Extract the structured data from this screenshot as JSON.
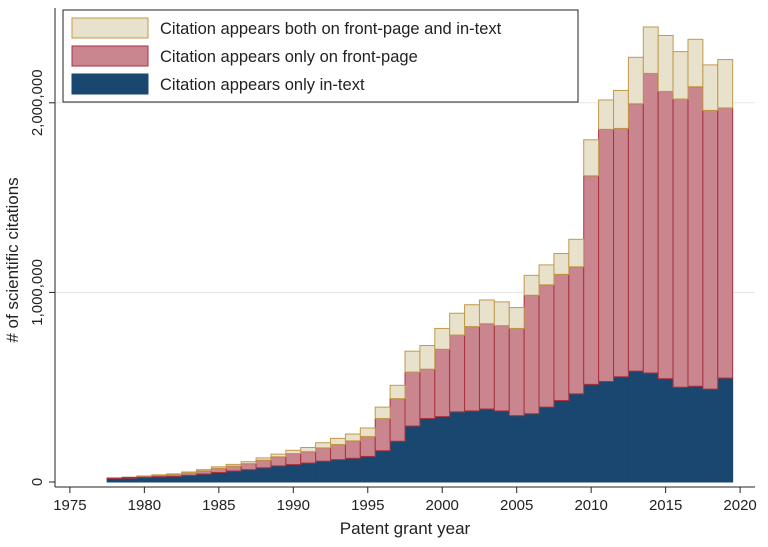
{
  "chart_data": {
    "type": "bar",
    "stacked": true,
    "xlabel": "Patent grant year",
    "ylabel": "# of scientific citations",
    "xlim": [
      1974,
      2021
    ],
    "ylim": [
      0,
      2500000
    ],
    "x_ticks": [
      1975,
      1980,
      1985,
      1990,
      1995,
      2000,
      2005,
      2010,
      2015,
      2020
    ],
    "y_ticks": [
      0,
      1000000,
      2000000
    ],
    "y_tick_labels": [
      "0",
      "1,000,000",
      "2,000,000"
    ],
    "grid": "horizontal",
    "legend_placement": "top-left",
    "x": [
      1978,
      1979,
      1980,
      1981,
      1982,
      1983,
      1984,
      1985,
      1986,
      1987,
      1988,
      1989,
      1990,
      1991,
      1992,
      1993,
      1994,
      1995,
      1996,
      1997,
      1998,
      1999,
      2000,
      2001,
      2002,
      2003,
      2004,
      2005,
      2006,
      2007,
      2008,
      2009,
      2010,
      2011,
      2012,
      2013,
      2014,
      2015,
      2016,
      2017,
      2018,
      2019
    ],
    "series": [
      {
        "name": "Citation appears only in-text",
        "color": "#1a476f",
        "edge": "#1a476f",
        "values": [
          18000,
          20000,
          25000,
          28000,
          30000,
          35000,
          42000,
          50000,
          58000,
          65000,
          75000,
          85000,
          92000,
          100000,
          110000,
          118000,
          125000,
          135000,
          165000,
          215000,
          295000,
          335000,
          345000,
          370000,
          375000,
          385000,
          375000,
          350000,
          360000,
          395000,
          430000,
          465000,
          515000,
          530000,
          555000,
          585000,
          575000,
          545000,
          500000,
          505000,
          490000,
          548000
        ]
      },
      {
        "name": "Citation appears only on front-page",
        "color": "#c9868f",
        "edge": "#a8323f",
        "values": [
          3000,
          5000,
          6000,
          8000,
          10000,
          13000,
          17000,
          22000,
          26000,
          32000,
          40000,
          48000,
          58000,
          60000,
          70000,
          80000,
          92000,
          105000,
          170000,
          225000,
          285000,
          260000,
          355000,
          405000,
          445000,
          450000,
          450000,
          460000,
          625000,
          645000,
          665000,
          670000,
          1100000,
          1330000,
          1310000,
          1410000,
          1580000,
          1515000,
          1520000,
          1580000,
          1470000,
          1425000
        ]
      },
      {
        "name": "Citation appears both on front-page and in-text",
        "color": "#e8e1cb",
        "edge": "#c29a4a",
        "values": [
          0,
          0,
          1000,
          2000,
          3000,
          5000,
          6000,
          8000,
          9000,
          10000,
          12000,
          14000,
          17000,
          22000,
          27000,
          32000,
          36000,
          45000,
          60000,
          70000,
          110000,
          125000,
          110000,
          115000,
          115000,
          125000,
          125000,
          110000,
          105000,
          105000,
          110000,
          145000,
          190000,
          155000,
          200000,
          245000,
          245000,
          295000,
          250000,
          250000,
          240000,
          255000
        ]
      }
    ],
    "legend_order": [
      "Citation appears both on front-page and in-text",
      "Citation appears only on front-page",
      "Citation appears only in-text"
    ]
  }
}
